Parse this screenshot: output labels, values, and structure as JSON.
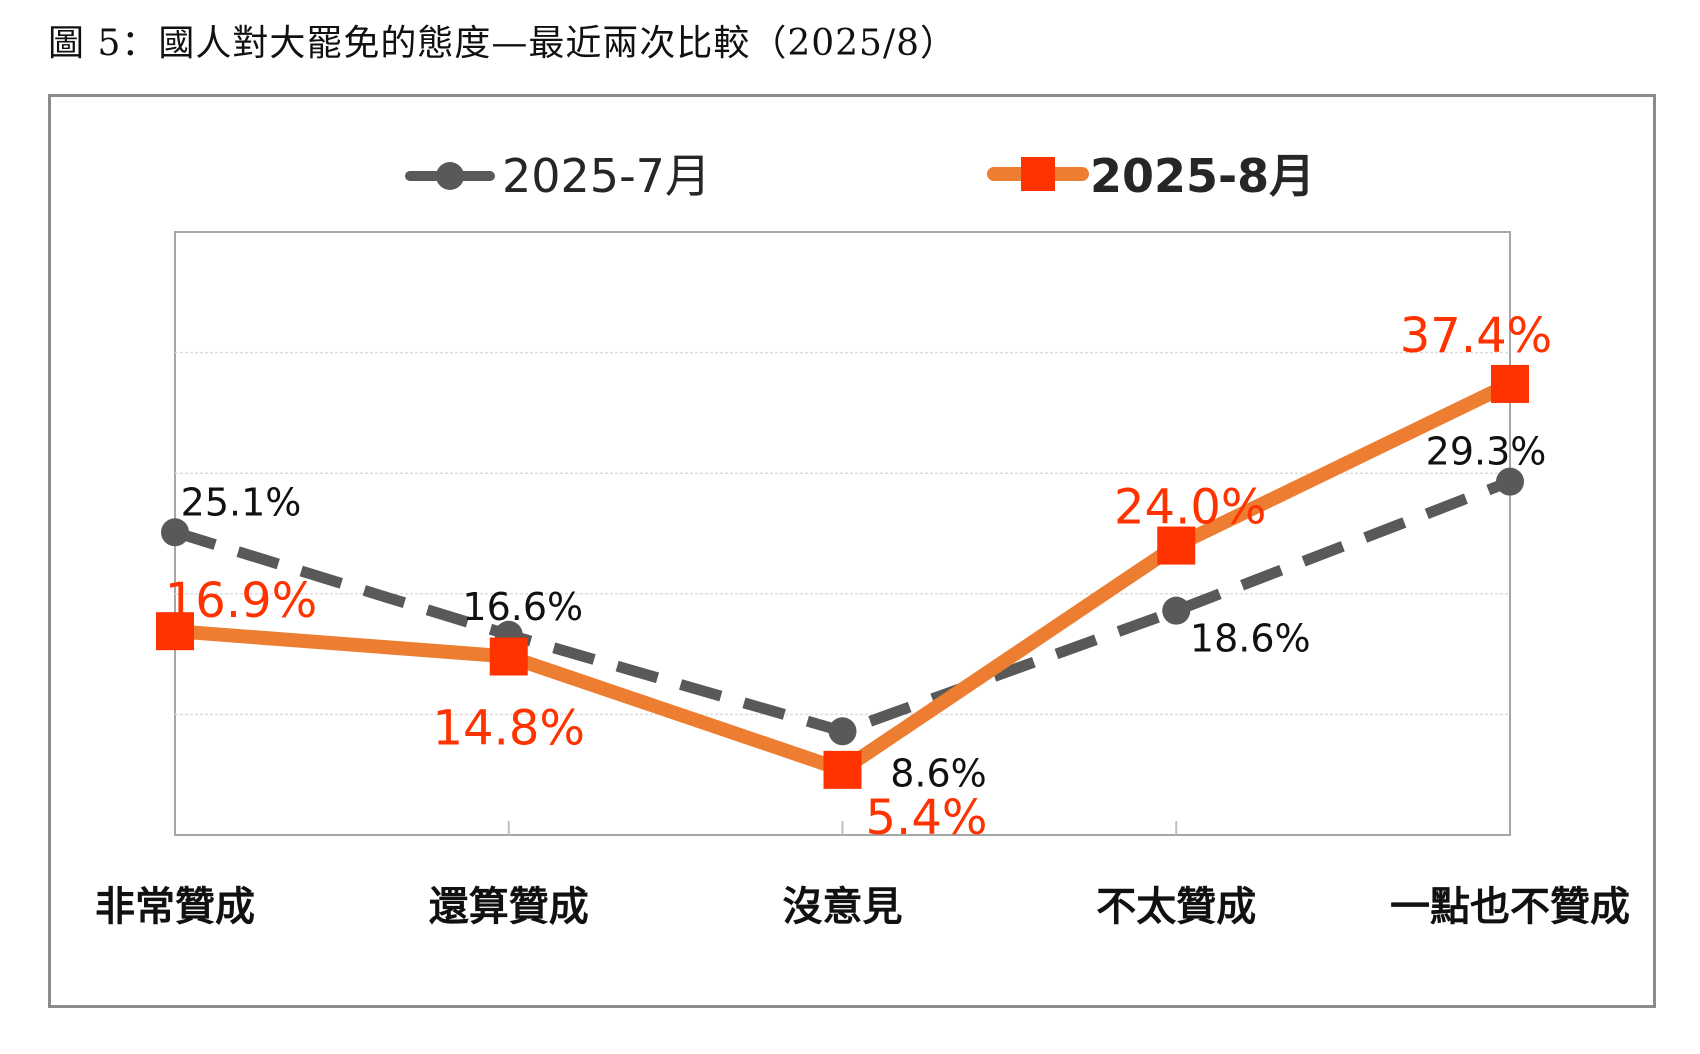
{
  "figure_title": "圖 5：國人對大罷免的態度—最近兩次比較（2025/8）",
  "colors": {
    "july": "#595959",
    "august": "#ed7d31",
    "august_marker": "#ff3300",
    "august_label": "#ff3300"
  },
  "chart_data": {
    "type": "line",
    "categories": [
      "非常贊成",
      "還算贊成",
      "沒意見",
      "不太贊成",
      "一點也不贊成"
    ],
    "series": [
      {
        "name": "2025-7月",
        "values": [
          25.1,
          16.6,
          8.6,
          18.6,
          29.3
        ],
        "labels": [
          "25.1%",
          "16.6%",
          "8.6%",
          "18.6%",
          "29.3%"
        ],
        "style": "dashed",
        "marker": "circle"
      },
      {
        "name": "2025-8月",
        "values": [
          16.9,
          14.8,
          5.4,
          24.0,
          37.4
        ],
        "labels": [
          "16.9%",
          "14.8%",
          "5.4%",
          "24.0%",
          "37.4%"
        ],
        "style": "solid",
        "marker": "square"
      }
    ],
    "ylim": [
      0,
      50
    ],
    "grid": true,
    "legend": "top-center"
  }
}
